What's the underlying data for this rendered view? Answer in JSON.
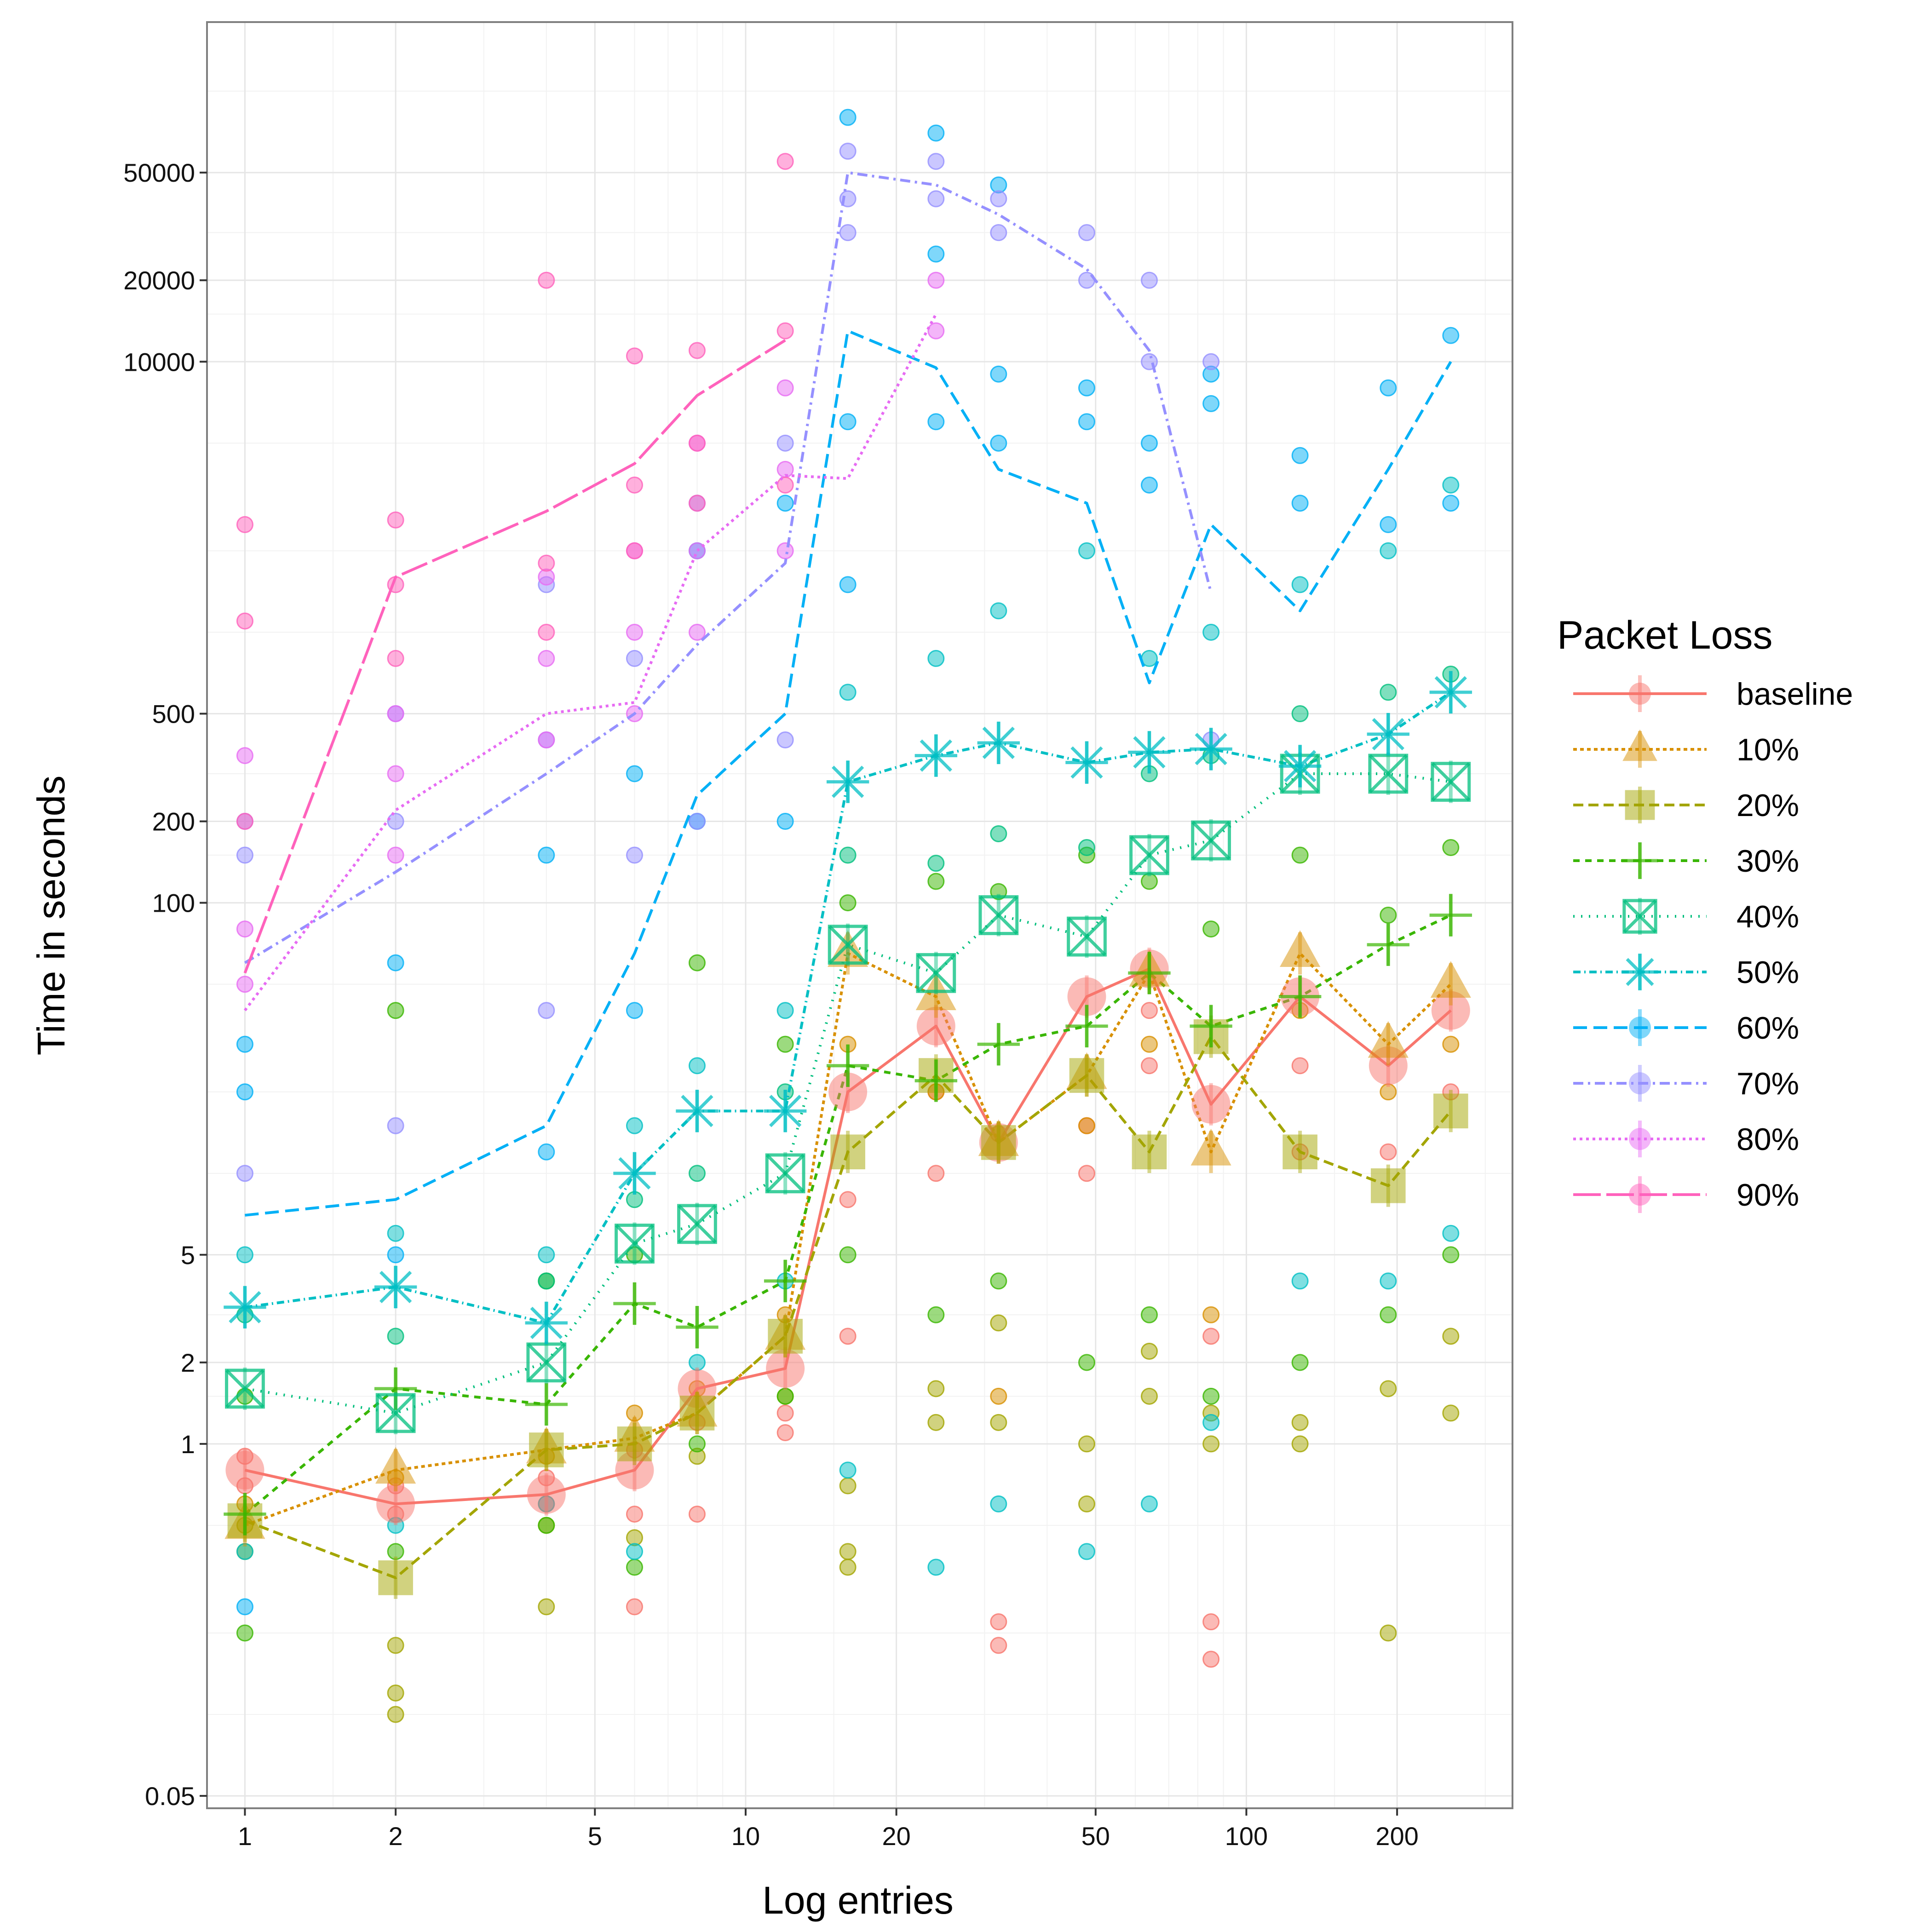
{
  "chart_data": {
    "type": "line",
    "title": "",
    "xlabel": "Log entries",
    "ylabel": "Time in seconds",
    "x_scale": "log",
    "y_scale": "log",
    "xlim": [
      0.84,
      340
    ],
    "ylim": [
      0.045,
      180000
    ],
    "x_ticks": [
      1,
      2,
      5,
      10,
      20,
      50,
      100,
      200
    ],
    "x_tick_labels": [
      "1",
      "2",
      "5",
      "10",
      "20",
      "50",
      "100",
      "200"
    ],
    "y_ticks": [
      0.05,
      1,
      2,
      5,
      100,
      200,
      500,
      10000,
      20000,
      50000
    ],
    "y_tick_labels": [
      "0.05",
      "1",
      "2",
      "5",
      "100",
      "200",
      "500",
      "10000",
      "20000",
      "50000"
    ],
    "grid": true,
    "legend": {
      "title": "Packet Loss",
      "position": "right"
    },
    "x": [
      1,
      2,
      4,
      6,
      8,
      12,
      16,
      24,
      32,
      48,
      64,
      85,
      128,
      192,
      256
    ],
    "series": [
      {
        "name": "baseline",
        "color": "#F8766D",
        "dash": "",
        "marker": "circle",
        "values": [
          0.8,
          0.6,
          0.65,
          0.8,
          1.6,
          1.9,
          20,
          35,
          13,
          45,
          57,
          18,
          45,
          25,
          40
        ]
      },
      {
        "name": "10%",
        "color": "#D89000",
        "dash": "8,7",
        "marker": "triangle",
        "values": [
          0.5,
          0.8,
          0.95,
          1.05,
          1.3,
          2.5,
          65,
          45,
          13,
          23,
          55,
          12,
          65,
          30,
          50
        ]
      },
      {
        "name": "20%",
        "color": "#A3A500",
        "dash": "22,11",
        "marker": "square",
        "values": [
          0.52,
          0.32,
          0.95,
          1.0,
          1.3,
          2.5,
          12,
          23,
          13,
          23,
          12,
          32,
          12,
          9,
          17
        ]
      },
      {
        "name": "30%",
        "color": "#39B600",
        "dash": "14,12",
        "marker": "plus",
        "values": [
          0.55,
          1.6,
          1.4,
          3.3,
          2.7,
          4.0,
          25,
          22,
          30,
          35,
          55,
          35,
          45,
          70,
          90
        ]
      },
      {
        "name": "40%",
        "color": "#00BF7D",
        "dash": "3,14",
        "marker": "boxed-x",
        "values": [
          1.6,
          1.3,
          2.0,
          5.5,
          6.5,
          10,
          70,
          55,
          90,
          75,
          150,
          170,
          300,
          300,
          280
        ]
      },
      {
        "name": "50%",
        "color": "#00BFC4",
        "dash": "16,8,3,8",
        "marker": "asterisk",
        "values": [
          3.2,
          3.8,
          2.8,
          10,
          17,
          17,
          280,
          350,
          390,
          330,
          360,
          370,
          320,
          420,
          600
        ]
      },
      {
        "name": "60%",
        "color": "#00B0F6",
        "dash": "30,14",
        "marker": "circle",
        "values": [
          7,
          8,
          15,
          65,
          250,
          500,
          13000,
          9500,
          4000,
          3000,
          650,
          2500,
          1200,
          4000,
          10000
        ]
      },
      {
        "name": "70%",
        "color": "#9590FF",
        "dash": "22,10,5,10",
        "marker": "circle",
        "values": [
          60,
          130,
          300,
          500,
          900,
          1800,
          50000,
          45000,
          35000,
          22000,
          11000,
          1400,
          null,
          null,
          null
        ]
      },
      {
        "name": "80%",
        "color": "#E76BF3",
        "dash": "6,8",
        "marker": "circle",
        "values": [
          40,
          220,
          500,
          550,
          2000,
          3800,
          3700,
          15000,
          null,
          null,
          null,
          null,
          null,
          null,
          null
        ]
      },
      {
        "name": "90%",
        "color": "#FF62BC",
        "dash": "60,12",
        "marker": "circle",
        "values": [
          55,
          1600,
          2800,
          4200,
          7500,
          12000,
          null,
          null,
          null,
          null,
          null,
          null,
          null,
          null,
          null
        ]
      }
    ],
    "raw_points": [
      {
        "series": "baseline",
        "x": [
          1,
          1,
          2,
          2,
          4,
          4,
          6,
          6,
          6,
          8,
          8,
          12,
          12,
          16,
          16,
          24,
          24,
          32,
          32,
          32,
          48,
          48,
          64,
          64,
          85,
          85,
          85,
          128,
          128,
          192,
          256
        ],
        "y": [
          0.7,
          0.9,
          0.55,
          0.7,
          0.6,
          0.75,
          0.25,
          0.55,
          0.95,
          0.55,
          1.2,
          1.1,
          1.3,
          2.5,
          8,
          10,
          20,
          0.18,
          0.22,
          14,
          10,
          15,
          25,
          40,
          0.16,
          0.22,
          2.5,
          12,
          25,
          12,
          20
        ]
      },
      {
        "series": "10%",
        "x": [
          1,
          2,
          4,
          6,
          8,
          12,
          16,
          24,
          32,
          48,
          64,
          85,
          128,
          192,
          256
        ],
        "y": [
          0.6,
          0.75,
          0.9,
          1.3,
          1.6,
          3,
          30,
          20,
          1.5,
          15,
          30,
          3,
          40,
          20,
          30
        ]
      },
      {
        "series": "20%",
        "x": [
          1,
          1,
          2,
          2,
          2,
          4,
          4,
          6,
          8,
          12,
          16,
          16,
          16,
          24,
          24,
          32,
          32,
          48,
          48,
          64,
          64,
          85,
          85,
          128,
          128,
          192,
          192,
          256,
          256
        ],
        "y": [
          0.5,
          0.4,
          0.1,
          0.12,
          0.18,
          0.25,
          0.5,
          0.45,
          0.9,
          1.5,
          0.35,
          0.4,
          0.7,
          1.2,
          1.6,
          1.2,
          2.8,
          0.6,
          1.0,
          1.5,
          2.2,
          1.0,
          1.3,
          1.0,
          1.2,
          0.2,
          1.6,
          1.3,
          2.5
        ]
      },
      {
        "series": "30%",
        "x": [
          1,
          1,
          2,
          2,
          4,
          4,
          6,
          6,
          8,
          8,
          12,
          12,
          16,
          16,
          24,
          24,
          32,
          32,
          48,
          48,
          64,
          64,
          85,
          85,
          128,
          128,
          192,
          192,
          256,
          256
        ],
        "y": [
          0.2,
          1.5,
          0.4,
          40,
          0.5,
          4,
          0.35,
          5,
          1,
          60,
          1.5,
          30,
          5,
          100,
          3,
          120,
          4,
          110,
          2,
          150,
          3,
          120,
          1.5,
          80,
          2,
          150,
          3,
          90,
          5,
          160
        ]
      },
      {
        "series": "40%",
        "x": [
          1,
          2,
          4,
          6,
          8,
          12,
          16,
          24,
          32,
          48,
          64,
          85,
          128,
          192,
          256
        ],
        "y": [
          3,
          2.5,
          4,
          8,
          10,
          20,
          150,
          140,
          180,
          160,
          300,
          350,
          500,
          600,
          700
        ]
      },
      {
        "series": "50%",
        "x": [
          1,
          1,
          2,
          2,
          4,
          4,
          6,
          6,
          8,
          8,
          12,
          12,
          16,
          16,
          24,
          24,
          32,
          32,
          48,
          48,
          64,
          64,
          85,
          85,
          128,
          128,
          192,
          192,
          256,
          256
        ],
        "y": [
          5,
          0.4,
          6,
          0.5,
          5,
          0.6,
          15,
          0.4,
          25,
          2,
          40,
          4,
          600,
          0.8,
          800,
          0.35,
          1200,
          0.6,
          2000,
          0.4,
          800,
          0.6,
          1000,
          1.2,
          1500,
          4,
          2000,
          4,
          3500,
          6
        ]
      },
      {
        "series": "60%",
        "x": [
          1,
          1,
          1,
          2,
          2,
          4,
          4,
          6,
          6,
          8,
          8,
          12,
          12,
          16,
          16,
          16,
          24,
          24,
          24,
          32,
          32,
          32,
          48,
          48,
          64,
          64,
          85,
          85,
          128,
          128,
          192,
          192,
          256,
          256
        ],
        "y": [
          0.25,
          20,
          30,
          5,
          60,
          12,
          150,
          40,
          300,
          200,
          2000,
          200,
          3000,
          1500,
          80000,
          6000,
          70000,
          6000,
          25000,
          45000,
          9000,
          5000,
          6000,
          8000,
          5000,
          3500,
          9000,
          7000,
          4500,
          3000,
          8000,
          2500,
          12500,
          3000
        ]
      },
      {
        "series": "70%",
        "x": [
          1,
          1,
          1,
          2,
          2,
          2,
          4,
          4,
          4,
          6,
          6,
          8,
          8,
          12,
          12,
          16,
          16,
          16,
          24,
          24,
          32,
          32,
          48,
          48,
          64,
          64,
          85,
          85
        ],
        "y": [
          10,
          150,
          200,
          15,
          200,
          500,
          40,
          400,
          1500,
          150,
          800,
          200,
          3000,
          400,
          5000,
          30000,
          60000,
          40000,
          40000,
          55000,
          30000,
          40000,
          20000,
          30000,
          10000,
          20000,
          10000,
          400
        ]
      },
      {
        "series": "80%",
        "x": [
          1,
          1,
          1,
          2,
          2,
          2,
          4,
          4,
          4,
          6,
          6,
          6,
          8,
          8,
          8,
          12,
          12,
          12,
          24,
          24
        ],
        "y": [
          50,
          80,
          350,
          150,
          300,
          500,
          400,
          800,
          1600,
          500,
          1000,
          2000,
          1000,
          2000,
          5000,
          2000,
          4000,
          8000,
          13000,
          20000
        ]
      },
      {
        "series": "90%",
        "x": [
          1,
          1,
          1,
          2,
          2,
          2,
          4,
          4,
          4,
          6,
          6,
          6,
          8,
          8,
          8,
          12,
          12,
          12
        ],
        "y": [
          200,
          1100,
          2500,
          800,
          1500,
          2600,
          1000,
          1800,
          20000,
          2000,
          3500,
          10500,
          3000,
          5000,
          11000,
          3500,
          13000,
          55000
        ]
      }
    ]
  }
}
